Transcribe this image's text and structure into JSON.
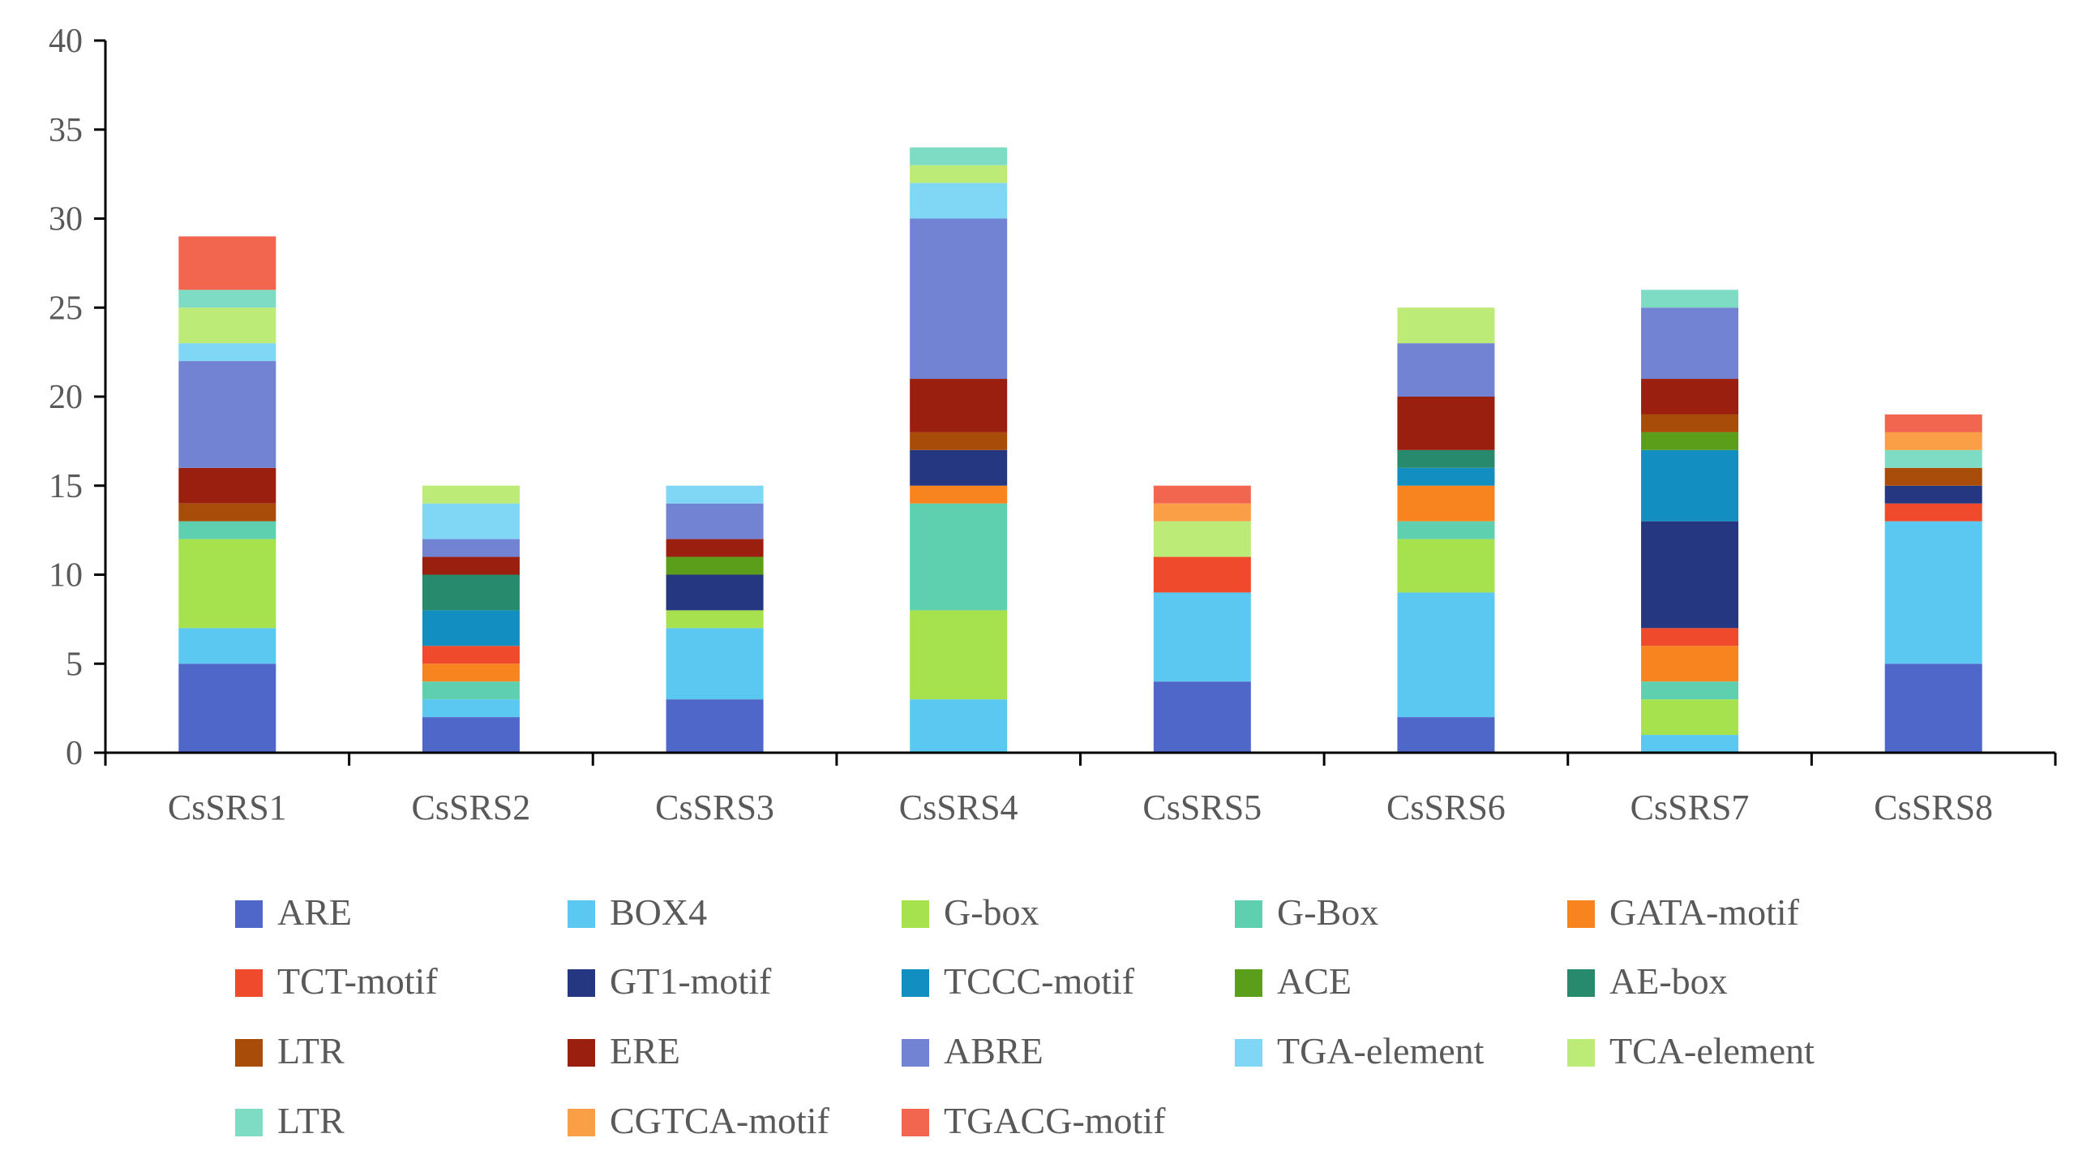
{
  "chart_data": {
    "type": "bar",
    "stacked": true,
    "title": "",
    "xlabel": "",
    "ylabel": "",
    "ylim": [
      0,
      40
    ],
    "yticks": [
      0,
      5,
      10,
      15,
      20,
      25,
      30,
      35,
      40
    ],
    "grid": false,
    "legend_position": "bottom",
    "categories": [
      "CsSRS1",
      "CsSRS2",
      "CsSRS3",
      "CsSRS4",
      "CsSRS5",
      "CsSRS6",
      "CsSRS7",
      "CsSRS8"
    ],
    "series": [
      {
        "name": "ARE",
        "color": "#4F67C9",
        "values": [
          5,
          2,
          3,
          0,
          4,
          2,
          0,
          5
        ]
      },
      {
        "name": "BOX4",
        "color": "#5BC8F2",
        "values": [
          2,
          1,
          4,
          3,
          5,
          7,
          1,
          8
        ]
      },
      {
        "name": "G-box",
        "color": "#A6E24E",
        "values": [
          5,
          0,
          1,
          5,
          0,
          3,
          2,
          0
        ]
      },
      {
        "name": "G-Box",
        "color": "#5ECFAF",
        "values": [
          1,
          1,
          0,
          6,
          0,
          1,
          1,
          0
        ]
      },
      {
        "name": "GATA-motif",
        "color": "#F7841E",
        "values": [
          0,
          1,
          0,
          1,
          0,
          2,
          2,
          0
        ]
      },
      {
        "name": "TCT-motif",
        "color": "#F04A2C",
        "values": [
          0,
          1,
          0,
          0,
          2,
          0,
          1,
          1
        ]
      },
      {
        "name": "GT1-motif",
        "color": "#253780",
        "values": [
          0,
          0,
          2,
          2,
          0,
          0,
          6,
          1
        ]
      },
      {
        "name": "TCCC-motif",
        "color": "#138EC0",
        "values": [
          0,
          2,
          0,
          0,
          0,
          1,
          4,
          0
        ]
      },
      {
        "name": "ACE",
        "color": "#5A9E1A",
        "values": [
          0,
          0,
          1,
          0,
          0,
          0,
          1,
          0
        ]
      },
      {
        "name": "AE-box",
        "color": "#288A6C",
        "values": [
          0,
          2,
          0,
          0,
          0,
          1,
          0,
          0
        ]
      },
      {
        "name": "LTR",
        "color": "#A84C0A",
        "values": [
          1,
          0,
          0,
          1,
          0,
          0,
          1,
          1
        ]
      },
      {
        "name": "ERE",
        "color": "#9A1F0E",
        "values": [
          2,
          1,
          1,
          3,
          0,
          3,
          2,
          0
        ]
      },
      {
        "name": "ABRE",
        "color": "#7283D3",
        "values": [
          6,
          1,
          2,
          9,
          0,
          3,
          4,
          0
        ]
      },
      {
        "name": "TGA-element",
        "color": "#7FD6F5",
        "values": [
          1,
          2,
          1,
          2,
          0,
          0,
          0,
          0
        ]
      },
      {
        "name": "TCA-element",
        "color": "#BDEB77",
        "values": [
          2,
          1,
          0,
          1,
          2,
          2,
          0,
          0
        ]
      },
      {
        "name": "LTR",
        "color": "#7DDCC3",
        "values": [
          1,
          0,
          0,
          1,
          0,
          0,
          1,
          1
        ]
      },
      {
        "name": "CGTCA-motif",
        "color": "#FA9F45",
        "values": [
          0,
          0,
          0,
          0,
          1,
          0,
          0,
          1
        ]
      },
      {
        "name": "TGACG-motif",
        "color": "#F2654F",
        "values": [
          3,
          0,
          0,
          0,
          1,
          0,
          0,
          1
        ]
      }
    ]
  }
}
